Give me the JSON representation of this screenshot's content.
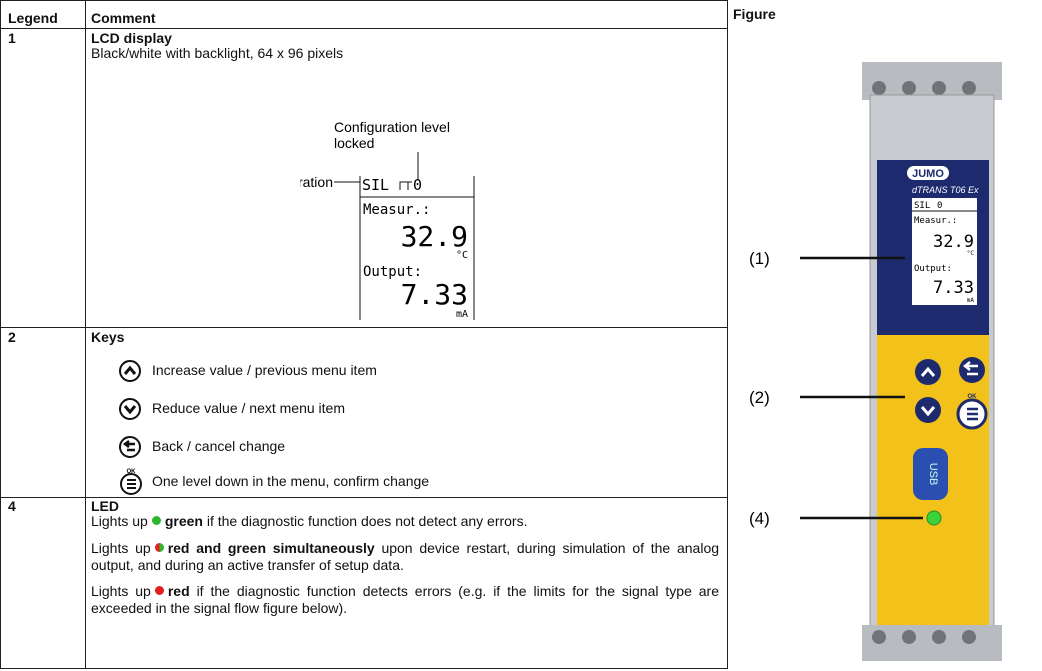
{
  "table": {
    "headers": [
      "Legend",
      "Comment",
      "Figure"
    ],
    "rows": [
      {
        "legend": "1",
        "title": "LCD display",
        "text": "Black/white with backlight, 64 x 96 pixels"
      },
      {
        "legend": "2",
        "title": "Keys",
        "items": [
          "Increase value / previous menu item",
          "Reduce value / next menu item",
          "Back / cancel change",
          "One level down in the menu, confirm change"
        ],
        "ok": "OK"
      },
      {
        "legend": "4",
        "title": "LED",
        "paragraphs": [
          {
            "before": "Lights up",
            "bold": "green",
            "after": "if the diagnostic function does not detect any errors."
          },
          {
            "before": "Lights up",
            "bold": "red and green simultaneously",
            "after": "upon device restart, during simulation of the analog output, and during an active transfer of setup data."
          },
          {
            "before": "Lights up",
            "bold": "red",
            "after": "if the diagnostic function detects errors (e.g. if the limits for the signal type are exceeded in the signal flow figure below)."
          }
        ]
      }
    ]
  },
  "lcd": {
    "callout_config": [
      "Configuration level",
      "locked"
    ],
    "callout_sil": "SIL Operation",
    "mode": "SIL",
    "lock_level": "0",
    "measure_label": "Measur.:",
    "measure_value": "32.9",
    "measure_unit": "°C",
    "output_label": "Output:",
    "output_value": "7.33",
    "output_unit": "mA"
  },
  "figure": {
    "callouts": [
      "(1)",
      "(2)",
      "(4)"
    ],
    "brand": "JUMO",
    "model": "dTRANS T06 Ex",
    "usb": "USB",
    "ok": "OK"
  }
}
